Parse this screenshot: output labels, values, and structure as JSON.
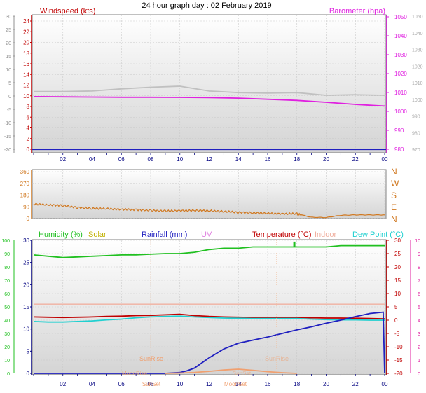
{
  "title": "24 hour graph day : 02 February 2019",
  "colors": {
    "plot_bg_top": "#ffffff",
    "plot_bg_bottom": "#d8d8d8",
    "wind": "#c00000",
    "baro": "#e020e0",
    "wind_dir": "#d07820",
    "humidity": "#20c020",
    "solar": "#c0b000",
    "rain": "#2020c0",
    "uv": "#e080e0",
    "temp": "#c00000",
    "indoor": "#f0b0a0",
    "dew": "#20d0d0",
    "gust": "#c0c0c0",
    "sun_moon": "#f0a070",
    "axis_left_gray": "#808080",
    "axis_pink": "#e020a0",
    "axis_green": "#20c020",
    "axis_blue": "#000080"
  },
  "chart_data": [
    {
      "type": "line",
      "panel": "wind-baro",
      "x_ticks": [
        "02",
        "04",
        "06",
        "08",
        "10",
        "12",
        "14",
        "16",
        "18",
        "20",
        "22",
        "00"
      ],
      "left_axis": {
        "label": "Windspeed (kts)",
        "range": [
          0,
          25
        ],
        "ticks": [
          "0",
          "2",
          "4",
          "6",
          "8",
          "10",
          "12",
          "14",
          "16",
          "18",
          "20",
          "22",
          "24"
        ],
        "outer_ticks": [
          "-20",
          "-15",
          "-10",
          "-5",
          "0",
          "5",
          "10",
          "15",
          "20",
          "25",
          "30"
        ]
      },
      "right_axis": {
        "label": "Barometer (hpa)",
        "range": [
          980,
          1050
        ],
        "ticks": [
          "980",
          "990",
          "1000",
          "1010",
          "1020",
          "1030",
          "1040",
          "1050"
        ],
        "outer_ticks": [
          "970",
          "980",
          "990",
          "1000",
          "1010",
          "1020",
          "1030",
          "1040",
          "1050"
        ]
      },
      "series": [
        {
          "name": "Barometer (hpa)",
          "color_key": "baro",
          "x": [
            0,
            2,
            4,
            6,
            8,
            10,
            12,
            14,
            16,
            18,
            20,
            22,
            24
          ],
          "values": [
            1007.8,
            1007.7,
            1007.6,
            1007.5,
            1007.5,
            1007.4,
            1007.3,
            1007.0,
            1006.4,
            1005.8,
            1004.8,
            1003.7,
            1002.8
          ]
        },
        {
          "name": "",
          "color_key": "gust",
          "x": [
            0,
            2,
            4,
            6,
            8,
            10,
            12,
            14,
            16,
            18,
            20,
            22,
            24
          ],
          "values": [
            10.8,
            10.8,
            10.9,
            11.3,
            11.6,
            11.8,
            10.9,
            10.6,
            10.5,
            10.6,
            10.1,
            10.2,
            10.1
          ]
        },
        {
          "name": "Windspeed (kts)",
          "color_key": "wind",
          "x": [
            0,
            24
          ],
          "values": [
            0,
            0
          ]
        }
      ]
    },
    {
      "type": "line",
      "panel": "wind-direction",
      "x_ticks": [],
      "left_axis": {
        "range": [
          0,
          360
        ],
        "ticks": [
          "0",
          "90",
          "180",
          "270",
          "360"
        ]
      },
      "right_axis": {
        "ticks": [
          "N",
          "W",
          "S",
          "E",
          "N"
        ]
      },
      "series": [
        {
          "name": "",
          "color_key": "wind_dir",
          "x": [
            0,
            1,
            2,
            3,
            4,
            5,
            6,
            7,
            8,
            9,
            10,
            11,
            12,
            13,
            14,
            15,
            16,
            17,
            18,
            18.6,
            19,
            20,
            21,
            22,
            23,
            24
          ],
          "values": [
            112,
            105,
            100,
            85,
            78,
            76,
            70,
            68,
            62,
            58,
            60,
            62,
            60,
            55,
            48,
            44,
            40,
            36,
            38,
            20,
            10,
            8,
            25,
            28,
            28,
            28
          ]
        }
      ]
    },
    {
      "type": "line",
      "panel": "temp-humidity-rain",
      "x_ticks": [
        "02",
        "04",
        "06",
        "08",
        "10",
        "12",
        "14",
        "16",
        "18",
        "20",
        "22",
        "00"
      ],
      "headers": [
        "Humidity (%)",
        "Solar",
        "Rainfall (mm)",
        "UV",
        "Temperature (°C)",
        "Indoor",
        "Dew Point (°C)"
      ],
      "annotations": [
        "SunRise",
        "SunSet",
        "MoonRise",
        "MoonSet",
        "SunRise",
        "SunSet"
      ],
      "axes": {
        "humidity_ticks": [
          "0",
          "10",
          "20",
          "30",
          "40",
          "50",
          "60",
          "70",
          "80",
          "90",
          "100"
        ],
        "rain_ticks": [
          "0",
          "5",
          "10",
          "15",
          "20",
          "25",
          "30"
        ],
        "temp_ticks": [
          "-20",
          "-15",
          "-10",
          "-5",
          "0",
          "5",
          "10",
          "15",
          "20",
          "25",
          "30"
        ],
        "uv_ticks": [
          "0",
          "1",
          "2",
          "3",
          "4",
          "5",
          "6",
          "7",
          "8",
          "9",
          "10"
        ],
        "temp_range": [
          -20,
          30
        ],
        "humidity_range": [
          0,
          100
        ],
        "rain_range": [
          0,
          30
        ]
      },
      "series": [
        {
          "name": "Humidity (%)",
          "color_key": "humidity",
          "x": [
            0,
            1,
            2,
            3,
            4,
            5,
            6,
            7,
            8,
            9,
            10,
            11,
            12,
            13,
            14,
            15,
            16,
            17,
            18,
            19,
            20,
            21,
            22,
            23,
            24
          ],
          "values": [
            89,
            88,
            87,
            87.5,
            88,
            88.5,
            89,
            89,
            89.5,
            90,
            90,
            91,
            93,
            94,
            94,
            95,
            95,
            95,
            95,
            95,
            95,
            96,
            96,
            96,
            96
          ]
        },
        {
          "name": "Indoor",
          "color_key": "indoor",
          "x": [
            0,
            24
          ],
          "values": [
            6,
            6
          ]
        },
        {
          "name": "Temperature (°C)",
          "color_key": "temp",
          "x": [
            0,
            1,
            2,
            3,
            4,
            5,
            6,
            7,
            8,
            9,
            10,
            11,
            12,
            13,
            14,
            15,
            16,
            17,
            18,
            19,
            20,
            21,
            22,
            23,
            24
          ],
          "values": [
            1.2,
            1.1,
            1.0,
            1.1,
            1.2,
            1.4,
            1.5,
            1.7,
            1.8,
            2.0,
            2.2,
            1.7,
            1.4,
            1.2,
            1.1,
            1.0,
            1.0,
            1.0,
            1.0,
            0.9,
            0.8,
            0.8,
            0.7,
            0.6,
            0.5
          ]
        },
        {
          "name": "Dew Point (°C)",
          "color_key": "dew",
          "x": [
            0,
            1,
            2,
            3,
            4,
            5,
            6,
            7,
            8,
            9,
            10,
            11,
            12,
            13,
            14,
            15,
            16,
            17,
            18,
            19,
            20,
            21,
            22,
            23,
            24
          ],
          "values": [
            -0.5,
            -0.7,
            -0.7,
            -0.5,
            -0.3,
            0.1,
            0.4,
            0.9,
            1.2,
            1.4,
            1.5,
            1.2,
            1.0,
            0.8,
            0.7,
            0.6,
            0.6,
            0.6,
            0.6,
            0.4,
            0.2,
            0.1,
            0.1,
            0.0,
            0.0
          ]
        },
        {
          "name": "Rainfall (mm)",
          "color_key": "rain",
          "x": [
            0,
            9,
            10,
            10.5,
            11,
            12,
            13,
            14,
            15,
            16,
            17,
            18,
            19,
            20,
            21,
            22,
            23,
            23.9,
            24
          ],
          "values": [
            0,
            0,
            0.2,
            0.6,
            1.2,
            3.5,
            5.5,
            6.8,
            7.5,
            8.2,
            9.0,
            9.8,
            10.5,
            11.3,
            12.0,
            12.8,
            13.5,
            13.8,
            0
          ]
        },
        {
          "name": "Solar",
          "color_key": "sun_moon",
          "x": [
            9,
            10,
            11,
            12,
            13,
            14,
            15,
            16,
            17,
            18
          ],
          "values": [
            0,
            0.2,
            0.6,
            1.2,
            2.0,
            2.5,
            1.8,
            1.0,
            0.4,
            0
          ]
        }
      ]
    }
  ]
}
